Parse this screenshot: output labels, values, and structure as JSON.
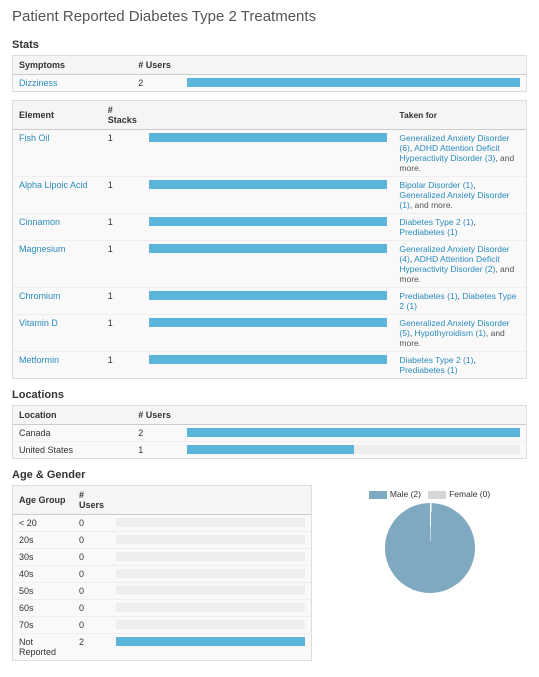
{
  "page_title": "Patient Reported Diabetes Type 2 Treatments",
  "colors": {
    "bar_fill": "#5bb5d8",
    "bar_track": "#eeeeee",
    "link": "#2a8bbd",
    "pie_male": "#7ea9c0",
    "pie_female": "#d6d6d6",
    "pie_sep": "#ffffff"
  },
  "stats": {
    "title": "Stats",
    "symptoms_table": {
      "headers": [
        "Symptoms",
        "# Users"
      ],
      "rows": [
        {
          "name": "Dizziness",
          "link": true,
          "count": 2,
          "bar_pct": 100
        }
      ]
    },
    "elements_table": {
      "headers": [
        "Element",
        "# Stacks",
        "",
        "Taken for"
      ],
      "rows": [
        {
          "name": "Fish Oil",
          "count": 1,
          "bar_pct": 100,
          "taken": [
            {
              "label": "Generalized Anxiety Disorder (6)"
            },
            {
              "label": "ADHD Attention Deficit Hyperactivity Disorder (3)"
            }
          ],
          "more": ", and more."
        },
        {
          "name": "Alpha Lipoic Acid",
          "count": 1,
          "bar_pct": 100,
          "taken": [
            {
              "label": "Bipolar Disorder (1)"
            },
            {
              "label": "Generalized Anxiety Disorder (1)"
            }
          ],
          "more": ", and more."
        },
        {
          "name": "Cinnamon",
          "count": 1,
          "bar_pct": 100,
          "taken": [
            {
              "label": "Diabetes Type 2 (1)"
            },
            {
              "label": "Prediabetes (1)"
            }
          ],
          "more": ""
        },
        {
          "name": "Magnesium",
          "count": 1,
          "bar_pct": 100,
          "taken": [
            {
              "label": "Generalized Anxiety Disorder (4)"
            },
            {
              "label": "ADHD Attention Deficit Hyperactivity Disorder (2)"
            }
          ],
          "more": ", and more."
        },
        {
          "name": "Chromium",
          "count": 1,
          "bar_pct": 100,
          "taken": [
            {
              "label": "Prediabetes (1)"
            },
            {
              "label": "Diabetes Type 2 (1)"
            }
          ],
          "more": ""
        },
        {
          "name": "Vitamin D",
          "count": 1,
          "bar_pct": 100,
          "taken": [
            {
              "label": "Generalized Anxiety Disorder (5)"
            },
            {
              "label": "Hypothyroidism (1)"
            }
          ],
          "more": ", and more."
        },
        {
          "name": "Metformin",
          "count": 1,
          "bar_pct": 100,
          "taken": [
            {
              "label": "Diabetes Type 2 (1)"
            },
            {
              "label": "Prediabetes (1)"
            }
          ],
          "more": ""
        }
      ]
    }
  },
  "locations": {
    "title": "Locations",
    "headers": [
      "Location",
      "# Users"
    ],
    "rows": [
      {
        "name": "Canada",
        "count": 2,
        "bar_pct": 100
      },
      {
        "name": "United States",
        "count": 1,
        "bar_pct": 50
      }
    ]
  },
  "age_gender": {
    "title": "Age & Gender",
    "headers": [
      "Age Group",
      "# Users"
    ],
    "rows": [
      {
        "name": "< 20",
        "count": 0,
        "bar_pct": 0
      },
      {
        "name": "20s",
        "count": 0,
        "bar_pct": 0
      },
      {
        "name": "30s",
        "count": 0,
        "bar_pct": 0
      },
      {
        "name": "40s",
        "count": 0,
        "bar_pct": 0
      },
      {
        "name": "50s",
        "count": 0,
        "bar_pct": 0
      },
      {
        "name": "60s",
        "count": 0,
        "bar_pct": 0
      },
      {
        "name": "70s",
        "count": 0,
        "bar_pct": 0
      },
      {
        "name": "Not Reported",
        "count": 2,
        "bar_pct": 100
      }
    ],
    "legend": {
      "male_label": "Male (2)",
      "female_label": "Female (0)"
    },
    "pie": {
      "male_pct": 100,
      "female_pct": 0
    }
  }
}
